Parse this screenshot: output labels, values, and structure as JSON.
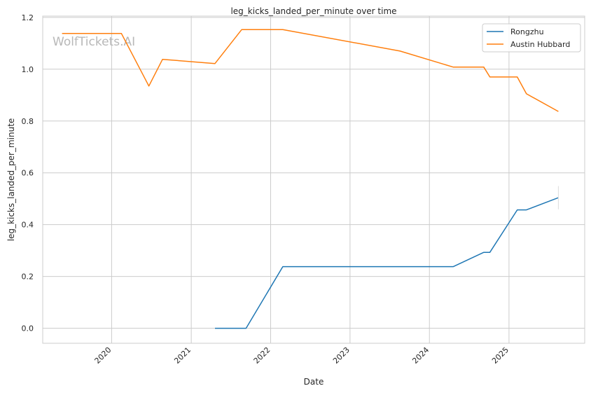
{
  "chart_data": {
    "type": "line",
    "title": "leg_kicks_landed_per_minute over time",
    "xlabel": "Date",
    "ylabel": "leg_kicks_landed_per_minute",
    "watermark": "WolfTickets.AI",
    "x_ticks": [
      "2020",
      "2021",
      "2022",
      "2023",
      "2024",
      "2025"
    ],
    "y_ticks": [
      "0.0",
      "0.2",
      "0.4",
      "0.6",
      "0.8",
      "1.0",
      "1.2"
    ],
    "xlim": [
      "2019-02-18",
      "2025-12-15"
    ],
    "ylim": [
      -0.058,
      1.205
    ],
    "grid": true,
    "legend_position": "top-right",
    "series": [
      {
        "name": "Rongzhu",
        "color": "#1f77b4",
        "points": [
          {
            "x": "2021-04-20",
            "y": 0.0
          },
          {
            "x": "2021-09-10",
            "y": 0.0
          },
          {
            "x": "2022-02-26",
            "y": 0.238
          },
          {
            "x": "2024-04-20",
            "y": 0.238
          },
          {
            "x": "2024-09-07",
            "y": 0.293
          },
          {
            "x": "2024-10-05",
            "y": 0.293
          },
          {
            "x": "2025-02-08",
            "y": 0.457
          },
          {
            "x": "2025-03-22",
            "y": 0.457
          },
          {
            "x": "2025-08-16",
            "y": 0.504
          }
        ]
      },
      {
        "name": "Austin Hubbard",
        "color": "#ff7f0e",
        "points": [
          {
            "x": "2019-05-18",
            "y": 1.138
          },
          {
            "x": "2020-02-15",
            "y": 1.138
          },
          {
            "x": "2020-06-20",
            "y": 0.935
          },
          {
            "x": "2020-08-22",
            "y": 1.038
          },
          {
            "x": "2021-04-20",
            "y": 1.022
          },
          {
            "x": "2021-08-21",
            "y": 1.153
          },
          {
            "x": "2022-02-26",
            "y": 1.153
          },
          {
            "x": "2023-08-19",
            "y": 1.07
          },
          {
            "x": "2024-04-20",
            "y": 1.008
          },
          {
            "x": "2024-09-07",
            "y": 1.008
          },
          {
            "x": "2024-10-05",
            "y": 0.97
          },
          {
            "x": "2025-02-08",
            "y": 0.97
          },
          {
            "x": "2025-03-22",
            "y": 0.905
          },
          {
            "x": "2025-08-16",
            "y": 0.837
          }
        ]
      }
    ]
  }
}
